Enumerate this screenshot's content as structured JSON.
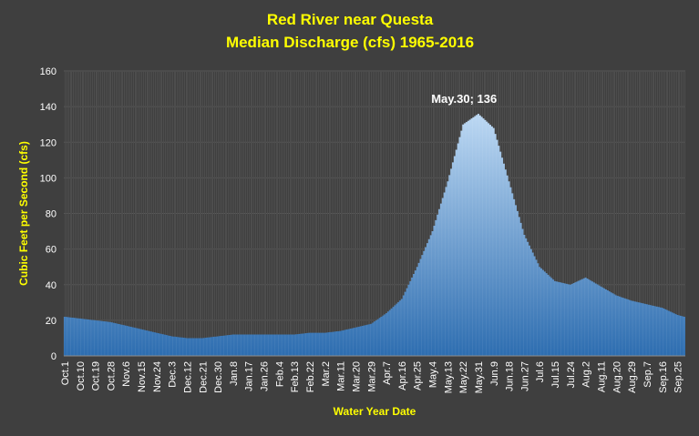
{
  "chart_data": {
    "type": "area",
    "title": "Red River near Questa",
    "subtitle": "Median Discharge (cfs) 1965-2016",
    "xlabel": "Water Year Date",
    "ylabel": "Cubic Feet per Second (cfs)",
    "ylim": [
      0,
      160
    ],
    "yticks": [
      "0",
      "20",
      "40",
      "60",
      "80",
      "100",
      "120",
      "140",
      "160"
    ],
    "grid": true,
    "x_tick_labels": [
      "Oct.1",
      "Oct.10",
      "Oct.19",
      "Oct.28",
      "Nov.6",
      "Nov.15",
      "Nov.24",
      "Dec.3",
      "Dec.12",
      "Dec.21",
      "Dec.30",
      "Jan.8",
      "Jan.17",
      "Jan.26",
      "Feb.4",
      "Feb.13",
      "Feb.22",
      "Mar.2",
      "Mar.11",
      "Mar.20",
      "Mar.29",
      "Apr.7",
      "Apr.16",
      "Apr.25",
      "May.4",
      "May.13",
      "May.22",
      "May.31",
      "Jun.9",
      "Jun.18",
      "Jun.27",
      "Jul.6",
      "Jul.15",
      "Jul.24",
      "Aug.2",
      "Aug.11",
      "Aug.20",
      "Aug.29",
      "Sep.7",
      "Sep.16",
      "Sep.25"
    ],
    "x_tick_interval_days": 9,
    "days": 365,
    "series": [
      {
        "values_at_ticks": [
          22,
          21,
          20,
          19,
          17,
          15,
          13,
          11,
          10,
          10,
          11,
          12,
          12,
          12,
          12,
          12,
          13,
          13,
          14,
          16,
          18,
          24,
          32,
          50,
          70,
          98,
          130,
          136,
          128,
          98,
          68,
          50,
          42,
          40,
          44,
          39,
          34,
          31,
          29,
          27,
          23
        ],
        "end_value": 22
      }
    ],
    "colors": {
      "fill_top": "#b9d6f2",
      "fill_bottom": "#2e6fb1",
      "background": "#3f3f3f",
      "grid": "#595959",
      "title": "#ffff00"
    },
    "annotation": {
      "text": "May.30; 136",
      "x_day": 241,
      "y": 136
    }
  }
}
